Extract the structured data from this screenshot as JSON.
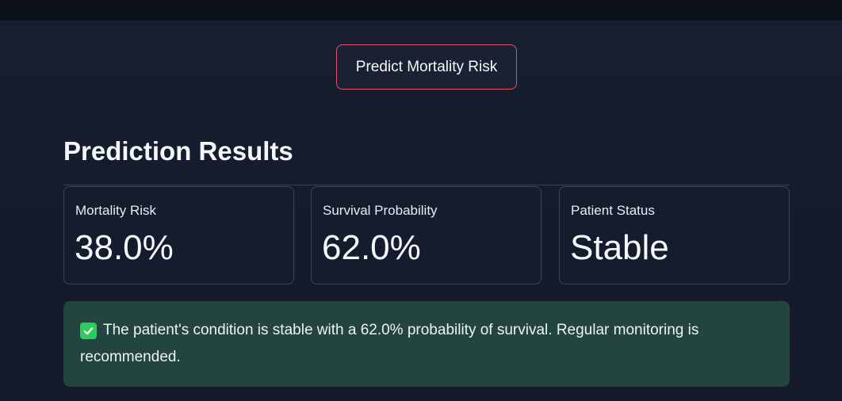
{
  "actions": {
    "predict_label": "Predict Mortality Risk"
  },
  "results": {
    "title": "Prediction Results",
    "metrics": [
      {
        "label": "Mortality Risk",
        "value": "38.0%"
      },
      {
        "label": "Survival Probability",
        "value": "62.0%"
      },
      {
        "label": "Patient Status",
        "value": "Stable"
      }
    ]
  },
  "alert": {
    "icon": "check-icon",
    "message": "The patient's condition is stable with a 62.0% probability of survival. Regular monitoring is recommended.",
    "color": "#22453d"
  },
  "colors": {
    "button_border": "#e05565",
    "success_icon": "#2ecc5e"
  }
}
